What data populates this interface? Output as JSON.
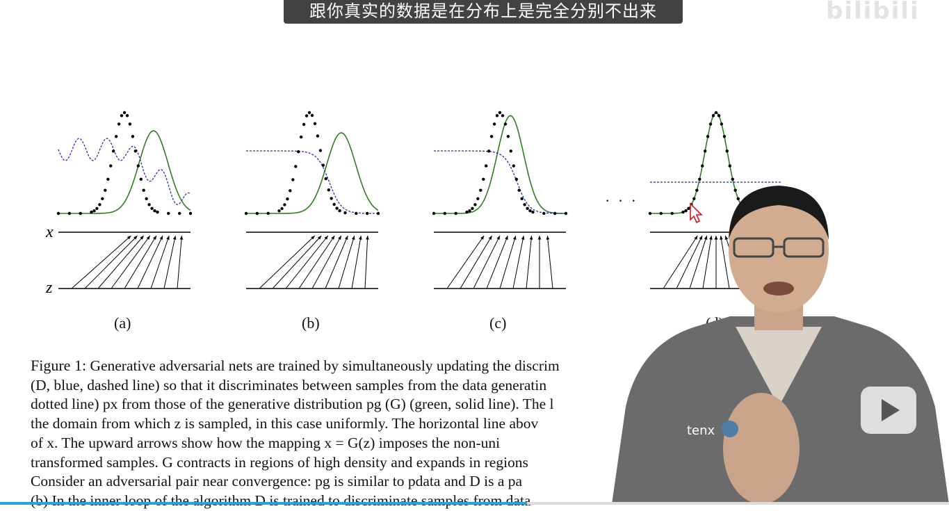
{
  "subtitle": {
    "text": "跟你真实的数据是在分布上是完全分别不出来"
  },
  "watermark": {
    "logo_icon": "bilibili-logo",
    "logo_text": "bilibili",
    "sub_text": ""
  },
  "figure": {
    "axis_x_label": "x",
    "axis_z_label": "z",
    "panels": [
      {
        "label": "(a)"
      },
      {
        "label": "(b)"
      },
      {
        "label": "(c)"
      },
      {
        "label": "(d)"
      }
    ],
    "ellipsis": "· · ·"
  },
  "caption": {
    "figure_label": "Figure 1:",
    "lines": [
      "Generative adversarial nets are trained by simultaneously updating the discrim",
      "(D, blue, dashed line) so that it discriminates between samples from the data generatin",
      "dotted line) px from those of the generative distribution pg (G) (green, solid line). The l",
      "the domain from which z is sampled, in this case uniformly. The horizontal line abov",
      "of x. The upward arrows show how the mapping x = G(z) imposes the non-uni",
      "transformed samples. G contracts in regions of high density and expands in regions",
      "Consider an adversarial pair near convergence: pg is similar to pdata and D is a pa",
      "(b) In the inner loop of the algorithm D is trained to discriminate samples from data"
    ]
  },
  "colors": {
    "discriminator": "#2c2cb0",
    "generator": "#2e7d20",
    "data": "#000000",
    "progress": "#27a2e0",
    "cursor": "#d8141c"
  },
  "player": {
    "progress_fraction": 0.555,
    "play_icon": "play-icon",
    "cursor_icon": "mouse-cursor-icon",
    "presenter_icon": "presenter-video-overlay"
  }
}
